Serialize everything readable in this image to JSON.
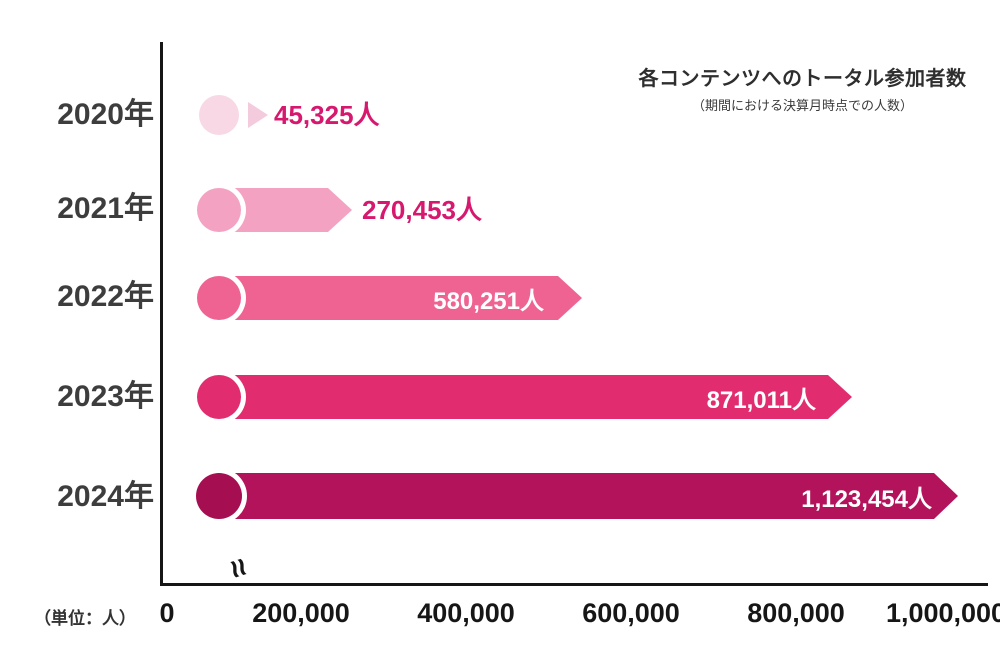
{
  "chart_data": {
    "type": "bar",
    "orientation": "horizontal",
    "title": "各コンテンツへのトータル参加者数",
    "subtitle": "（期間における決算月時点での人数）",
    "unit_label": "（単位：人）",
    "categories": [
      "2020年",
      "2021年",
      "2022年",
      "2023年",
      "2024年"
    ],
    "values": [
      45325,
      270453,
      580251,
      871011,
      1123454
    ],
    "value_labels": [
      "45,325人",
      "270,453人",
      "580,251人",
      "871,011人",
      "1,123,454人"
    ],
    "rows": [
      {
        "year": "2020年",
        "value": 45325,
        "label": "45,325人",
        "bar_color": "#F7D8E4",
        "label_placement": "outside",
        "label_color": "#D6186E"
      },
      {
        "year": "2021年",
        "value": 270453,
        "label": "270,453人",
        "bar_color": "#F4A2C2",
        "label_placement": "outside",
        "label_color": "#D6186E"
      },
      {
        "year": "2022年",
        "value": 580251,
        "label": "580,251人",
        "bar_color": "#EF6392",
        "label_placement": "inside",
        "label_color": "#FFFFFF"
      },
      {
        "year": "2023年",
        "value": 871011,
        "label": "871,011人",
        "bar_color": "#E12D6F",
        "label_placement": "inside",
        "label_color": "#FFFFFF"
      },
      {
        "year": "2024年",
        "value": 1123454,
        "label": "1,123,454人",
        "bar_color": "#B3135B",
        "label_placement": "inside",
        "label_color": "#FFFFFF"
      }
    ],
    "x_axis": {
      "ticks": [
        "0",
        "200,000",
        "400,000",
        "600,000",
        "800,000",
        "1,000,000"
      ],
      "range": [
        0,
        1000000
      ],
      "has_break": true,
      "break_symbol": "≈"
    },
    "grid": false,
    "legend": "none"
  }
}
